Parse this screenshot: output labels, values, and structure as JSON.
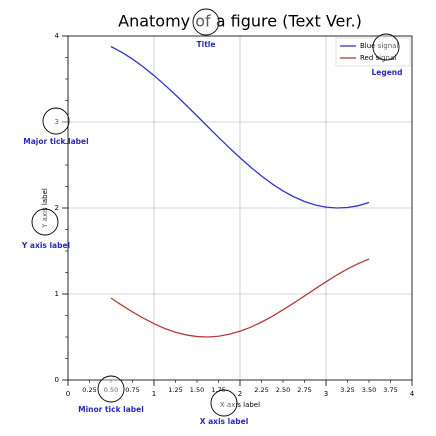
{
  "chart_data": {
    "type": "line",
    "title": "Anatomy of a figure (Text Ver.)",
    "x_label": "X axis label",
    "y_label": "Y axis label",
    "x": [
      0.5,
      0.625,
      0.75,
      0.875,
      1,
      1.125,
      1.25,
      1.375,
      1.5,
      1.625,
      1.75,
      1.875,
      2,
      2.125,
      2.25,
      2.375,
      2.5,
      2.625,
      2.75,
      2.875,
      3,
      3.125,
      3.25,
      3.375,
      3.5
    ],
    "series": [
      {
        "name": "Blue signal",
        "color": "#3636c8",
        "values": [
          3.878,
          3.811,
          3.732,
          3.641,
          3.54,
          3.431,
          3.315,
          3.195,
          3.071,
          2.946,
          2.822,
          2.701,
          2.584,
          2.474,
          2.372,
          2.28,
          2.199,
          2.131,
          2.076,
          2.035,
          2.01,
          2.0,
          2.006,
          2.027,
          2.064
        ]
      },
      {
        "name": "Red signal",
        "color": "#b63c3c",
        "values": [
          0.952,
          0.87,
          0.792,
          0.72,
          0.655,
          0.599,
          0.555,
          0.524,
          0.505,
          0.5,
          0.509,
          0.532,
          0.567,
          0.614,
          0.673,
          0.741,
          0.816,
          0.895,
          0.977,
          1.06,
          1.142,
          1.22,
          1.292,
          1.354,
          1.407
        ]
      }
    ],
    "xlim": [
      0,
      4
    ],
    "ylim": [
      0,
      4
    ],
    "xticks": [
      0,
      1,
      2,
      3,
      4
    ],
    "xminorticks": [
      0.25,
      {
        "value": 0.5,
        "label": "0.50"
      },
      0.75,
      1.25,
      {
        "value": 1.5,
        "label": "1.50"
      },
      1.75,
      2.25,
      {
        "value": 2.5,
        "label": "2.50"
      },
      2.75,
      3.25,
      {
        "value": 3.5,
        "label": "3.50"
      },
      3.75
    ],
    "yticks": [
      0,
      1,
      2,
      3,
      4
    ],
    "yminorticks": [
      0.25,
      0.5,
      0.75,
      1.25,
      1.5,
      1.75,
      2.25,
      2.5,
      2.75,
      3.25,
      3.5,
      3.75
    ],
    "grid": true,
    "legend": "upper right",
    "annotations": [
      "Title",
      "Legend",
      "Major tick label",
      "Y axis label",
      "Minor tick label",
      "X axis label"
    ],
    "annotation_color": "#2a2ab8"
  }
}
